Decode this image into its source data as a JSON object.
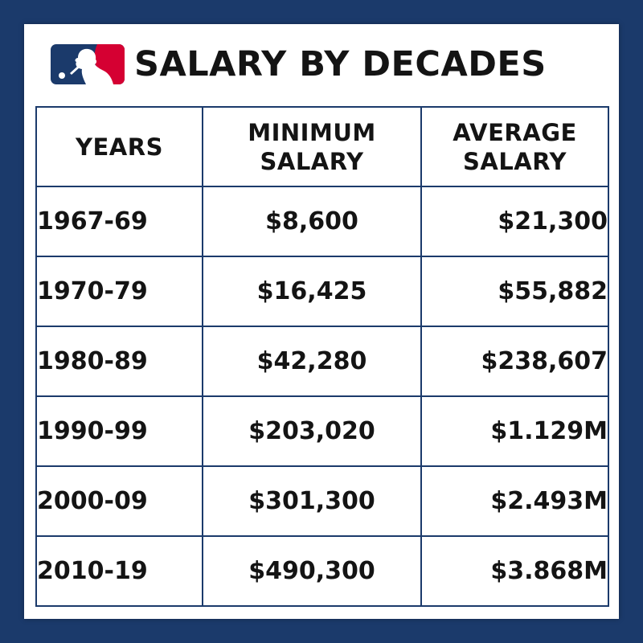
{
  "colors": {
    "background": "#1b3a6b",
    "card": "#ffffff",
    "border": "#1b3a6b",
    "text": "#141414",
    "logo_blue": "#1b3a6b",
    "logo_red": "#d50032"
  },
  "header": {
    "logo_icon": "mlb-logo-icon",
    "title": "SALARY BY DECADES"
  },
  "chart_data": {
    "type": "table",
    "title": "SALARY BY DECADES",
    "columns": [
      {
        "line1": "YEARS",
        "line2": ""
      },
      {
        "line1": "MINIMUM",
        "line2": "SALARY"
      },
      {
        "line1": "AVERAGE",
        "line2": "SALARY"
      }
    ],
    "rows": [
      {
        "years": "1967-69",
        "minimum": "$8,600",
        "average": "$21,300"
      },
      {
        "years": "1970-79",
        "minimum": "$16,425",
        "average": "$55,882"
      },
      {
        "years": "1980-89",
        "minimum": "$42,280",
        "average": "$238,607"
      },
      {
        "years": "1990-99",
        "minimum": "$203,020",
        "average": "$1.129M"
      },
      {
        "years": "2000-09",
        "minimum": "$301,300",
        "average": "$2.493M"
      },
      {
        "years": "2010-19",
        "minimum": "$490,300",
        "average": "$3.868M"
      }
    ]
  }
}
